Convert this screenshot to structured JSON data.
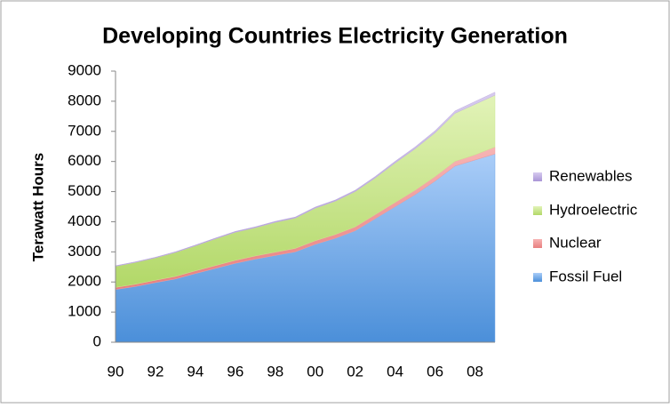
{
  "chart_data": {
    "type": "stacked_area",
    "title": "Developing Countries Electricity Generation",
    "y_label": "Terawatt Hours",
    "categories": [
      "90",
      null,
      "92",
      null,
      "94",
      null,
      "96",
      null,
      "98",
      null,
      "00",
      null,
      "02",
      null,
      "04",
      null,
      "06",
      null,
      "08",
      null
    ],
    "series": [
      {
        "name": "Fossil Fuel",
        "color": "#6fa6e8",
        "values": [
          1750,
          1850,
          1980,
          2100,
          2280,
          2450,
          2620,
          2760,
          2880,
          3000,
          3250,
          3450,
          3700,
          4100,
          4500,
          4900,
          5350,
          5850,
          6050,
          6250
        ]
      },
      {
        "name": "Nuclear",
        "color": "#f29c9c",
        "values": [
          70,
          75,
          80,
          85,
          90,
          95,
          100,
          105,
          110,
          115,
          120,
          125,
          130,
          135,
          140,
          145,
          150,
          155,
          170,
          230
        ]
      },
      {
        "name": "Hydroelectric",
        "color": "#cbe78f",
        "values": [
          700,
          725,
          740,
          795,
          830,
          885,
          930,
          935,
          990,
          1005,
          1080,
          1105,
          1170,
          1215,
          1310,
          1375,
          1450,
          1595,
          1680,
          1720
        ]
      },
      {
        "name": "Renewables",
        "color": "#c3b1e1",
        "values": [
          20,
          20,
          22,
          24,
          26,
          28,
          30,
          32,
          34,
          36,
          38,
          42,
          46,
          50,
          56,
          62,
          70,
          78,
          90,
          100
        ]
      }
    ],
    "ylim": [
      0,
      9000
    ],
    "yticks": [
      0,
      1000,
      2000,
      3000,
      4000,
      5000,
      6000,
      7000,
      8000,
      9000
    ],
    "legend": "right",
    "grid": false
  }
}
